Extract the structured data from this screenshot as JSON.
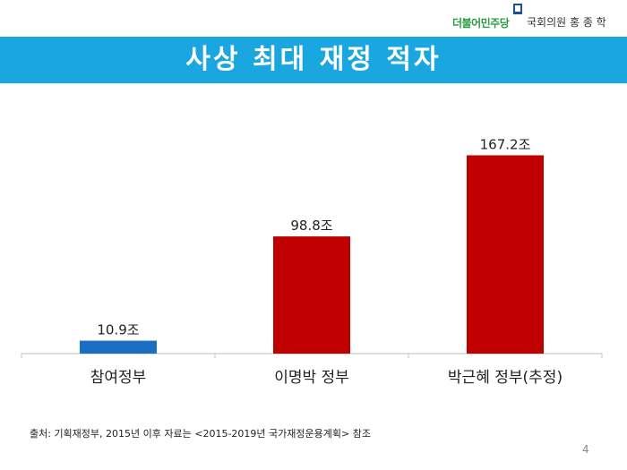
{
  "header": {
    "party": "더불어민주당",
    "member": "국회의원 홍 종 학"
  },
  "title": "사상 최대 재정 적자",
  "chart_data": {
    "type": "bar",
    "categories": [
      "참여정부",
      "이명박 정부",
      "박근혜 정부(추정)"
    ],
    "values": [
      10.9,
      98.8,
      167.2
    ],
    "data_labels": [
      "10.9조",
      "98.8조",
      "167.2조"
    ],
    "colors": [
      "#1a6fc4",
      "#c00000",
      "#c00000"
    ],
    "unit": "조",
    "ylim": [
      0,
      200
    ],
    "grid": false,
    "legend": "none"
  },
  "footer": {
    "source": "출처: 기획재정부, 2015년 이후 자료는 <2015-2019년 국가재정운용계획> 참조",
    "page": "4"
  }
}
